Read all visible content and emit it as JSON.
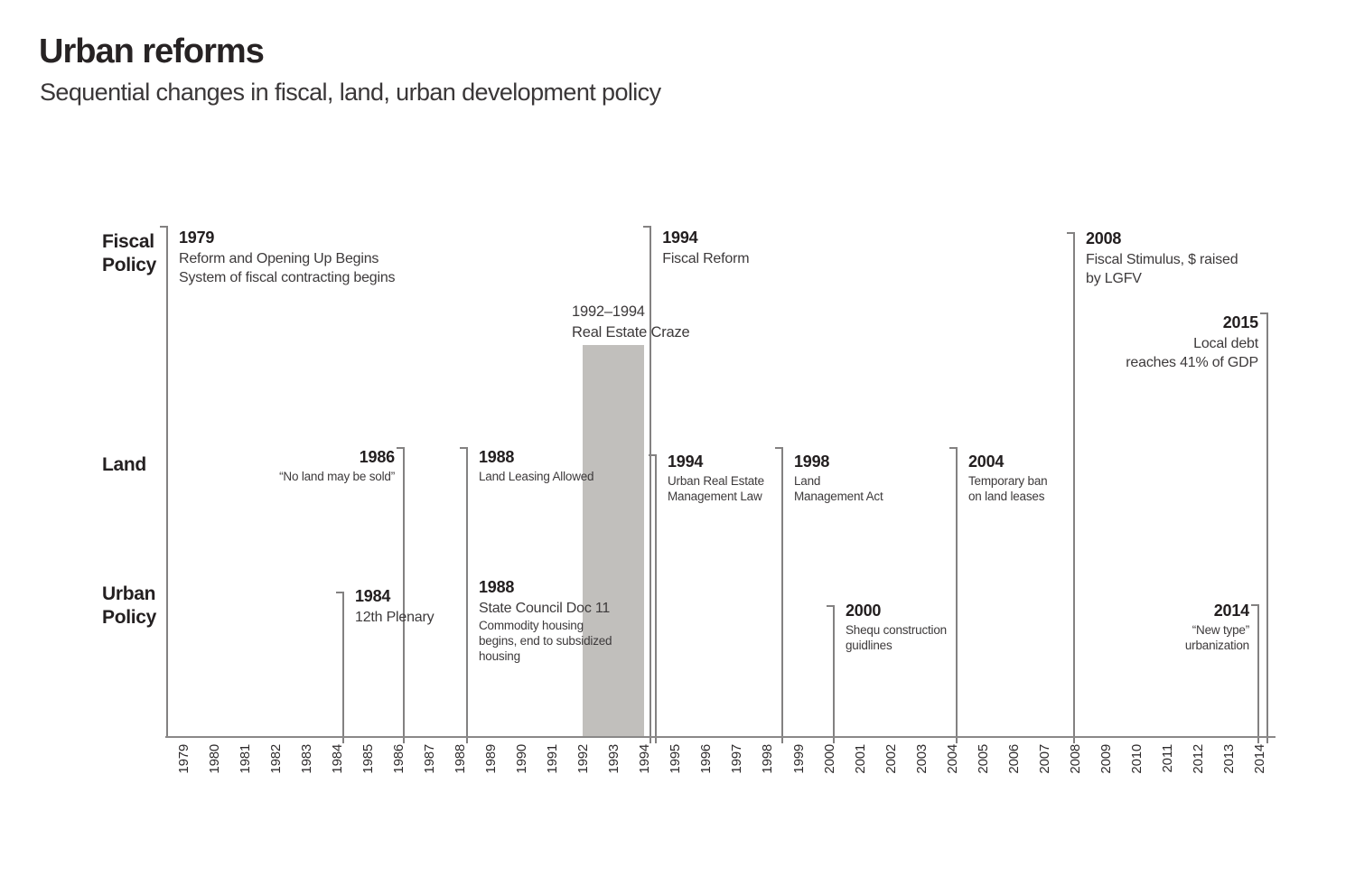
{
  "title": "Urban reforms",
  "subtitle": "Sequential changes in fiscal, land, urban development policy",
  "chart_data": {
    "type": "timeline",
    "rows": [
      {
        "id": "fiscal",
        "label_lines": [
          "Fiscal",
          "Policy"
        ]
      },
      {
        "id": "land",
        "label_lines": [
          "Land"
        ]
      },
      {
        "id": "urban",
        "label_lines": [
          "Urban",
          "Policy"
        ]
      }
    ],
    "axis": {
      "years": [
        "1979",
        "1980",
        "1981",
        "1982",
        "1983",
        "1984",
        "1985",
        "1986",
        "1987",
        "1988",
        "1989",
        "1990",
        "1991",
        "1992",
        "1993",
        "1994",
        "1995",
        "1996",
        "1997",
        "1998",
        "1999",
        "2000",
        "2001",
        "2002",
        "2003",
        "2004",
        "2005",
        "2006",
        "2007",
        "2008",
        "2009",
        "2010",
        "2011",
        "2012",
        "2013",
        "2014"
      ]
    },
    "highlight_band": {
      "start_year": 1992,
      "end_year": 1994,
      "label_lines": [
        "1992–1994",
        "Real Estate Craze"
      ]
    },
    "events": [
      {
        "id": "fiscal-1979",
        "row": "fiscal",
        "year": 1979,
        "year_label": "1979",
        "align": "left",
        "text_lines": [
          "Reform and Opening Up Begins",
          "System of fiscal contracting begins"
        ],
        "small_lines": []
      },
      {
        "id": "fiscal-1994",
        "row": "fiscal",
        "year": 1994,
        "year_label": "1994",
        "align": "left",
        "text_lines": [
          "Fiscal Reform"
        ],
        "small_lines": []
      },
      {
        "id": "fiscal-2008",
        "row": "fiscal",
        "year": 2008,
        "year_label": "2008",
        "align": "left",
        "text_lines": [
          "Fiscal Stimulus, $ raised",
          "by LGFV"
        ],
        "small_lines": []
      },
      {
        "id": "fiscal-2015",
        "row": "fiscal",
        "year": 2015,
        "year_label": "2015",
        "align": "right",
        "text_lines": [
          "Local debt",
          "reaches 41% of GDP"
        ],
        "small_lines": []
      },
      {
        "id": "land-1986",
        "row": "land",
        "year": 1986,
        "year_label": "1986",
        "align": "right",
        "text_lines": [],
        "small_lines": [
          "“No land may be sold”"
        ]
      },
      {
        "id": "land-1988",
        "row": "land",
        "year": 1988,
        "year_label": "1988",
        "align": "left",
        "text_lines": [],
        "small_lines": [
          "Land Leasing Allowed"
        ]
      },
      {
        "id": "land-1994",
        "row": "land",
        "year": 1994,
        "year_label": "1994",
        "align": "left",
        "text_lines": [],
        "small_lines": [
          "Urban Real Estate",
          "Management Law"
        ]
      },
      {
        "id": "land-1998",
        "row": "land",
        "year": 1998,
        "year_label": "1998",
        "align": "left",
        "text_lines": [],
        "small_lines": [
          "Land",
          "Management Act"
        ]
      },
      {
        "id": "land-2004",
        "row": "land",
        "year": 2004,
        "year_label": "2004",
        "align": "left",
        "text_lines": [],
        "small_lines": [
          "Temporary ban",
          "on land leases"
        ]
      },
      {
        "id": "urban-1984",
        "row": "urban",
        "year": 1984,
        "year_label": "1984",
        "align": "left",
        "text_lines": [
          "12th Plenary"
        ],
        "small_lines": []
      },
      {
        "id": "urban-1988",
        "row": "urban",
        "year": 1988,
        "year_label": "1988",
        "align": "left",
        "text_lines": [
          "State Council Doc 11"
        ],
        "small_lines": [
          "Commodity housing",
          "begins, end to subsidized",
          "housing"
        ]
      },
      {
        "id": "urban-2000",
        "row": "urban",
        "year": 2000,
        "year_label": "2000",
        "align": "left",
        "text_lines": [],
        "small_lines": [
          "Shequ construction",
          "guidlines"
        ]
      },
      {
        "id": "urban-2014",
        "row": "urban",
        "year": 2014,
        "year_label": "2014",
        "align": "right",
        "text_lines": [],
        "small_lines": [
          "“New type”",
          "urbanization"
        ]
      }
    ],
    "colors": {
      "band": "#c1bfbc",
      "marker_line": "#838181",
      "axis_line": "#8a8888",
      "text": "#231f20"
    }
  }
}
